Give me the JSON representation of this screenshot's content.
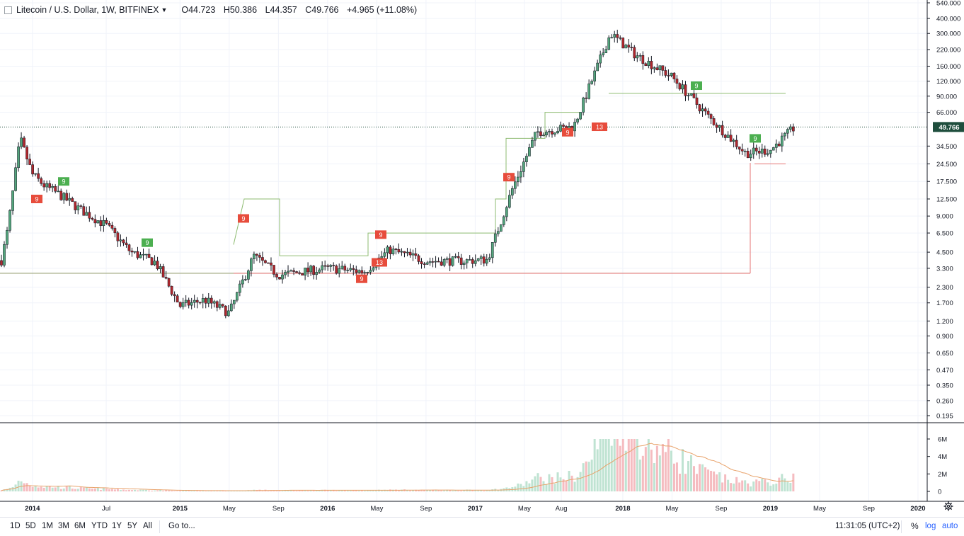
{
  "legend": {
    "symbol": "Litecoin / U.S. Dollar, 1W, BITFINEX",
    "open": "O44.723",
    "high": "H50.386",
    "low": "L44.357",
    "close": "C49.766",
    "change": "+4.965 (+11.08%)"
  },
  "price_axis": {
    "scale": "log",
    "ticks": [
      "540.000",
      "400.000",
      "300.000",
      "220.000",
      "160.000",
      "120.000",
      "90.000",
      "66.000",
      "49.766",
      "34.500",
      "24.500",
      "17.500",
      "12.500",
      "9.000",
      "6.500",
      "4.500",
      "3.300",
      "2.300",
      "1.700",
      "1.200",
      "0.900",
      "0.650",
      "0.470",
      "0.350",
      "0.260",
      "0.195"
    ],
    "last_price": "49.766"
  },
  "volume_axis": {
    "ticks": [
      "6M",
      "4M",
      "2M",
      "0"
    ]
  },
  "time_axis": {
    "labels": [
      "2014",
      "Jul",
      "2015",
      "May",
      "Sep",
      "2016",
      "May",
      "Sep",
      "2017",
      "May",
      "Aug",
      "2018",
      "May",
      "Sep",
      "2019",
      "May",
      "Sep",
      "2020"
    ],
    "bold": [
      "2014",
      "2015",
      "2016",
      "2017",
      "2018",
      "2019",
      "2020"
    ]
  },
  "bottom_bar": {
    "ranges": [
      "1D",
      "5D",
      "1M",
      "3M",
      "6M",
      "YTD",
      "1Y",
      "5Y",
      "All"
    ],
    "goto": "Go to...",
    "clock": "11:31:05 (UTC+2)",
    "percent": "%",
    "log": "log",
    "auto": "auto"
  },
  "colors": {
    "up": "#53a57c",
    "down": "#b1272d",
    "wick": "#131722",
    "vol_up": "#bfe3d2",
    "vol_down": "#f5bcc0",
    "vol_ma": "#e8a26a",
    "last_price_bg": "#1f4e3d",
    "td_red": "#e74c3c",
    "td_green": "#4caf50",
    "ref_line_olive": "#9ea57a",
    "ref_line_green": "#8dbb70",
    "ref_line_red": "#e57373"
  },
  "chart_data": {
    "type": "candlestick",
    "timeframe": "1W",
    "scale": "log",
    "price_range": [
      0.195,
      540
    ],
    "approx_weekly_close": [
      {
        "date": "2013-10",
        "close": 2.2
      },
      {
        "date": "2013-11",
        "close": 7.0
      },
      {
        "date": "2013-12",
        "close": 40
      },
      {
        "date": "2014-01",
        "close": 20
      },
      {
        "date": "2014-02",
        "close": 16
      },
      {
        "date": "2014-03",
        "close": 14
      },
      {
        "date": "2014-05",
        "close": 10
      },
      {
        "date": "2014-07",
        "close": 7.5
      },
      {
        "date": "2014-09",
        "close": 4.5
      },
      {
        "date": "2014-11",
        "close": 3.7
      },
      {
        "date": "2015-01",
        "close": 1.6
      },
      {
        "date": "2015-03",
        "close": 1.8
      },
      {
        "date": "2015-05",
        "close": 1.4
      },
      {
        "date": "2015-07",
        "close": 4.2
      },
      {
        "date": "2015-09",
        "close": 2.9
      },
      {
        "date": "2016-01",
        "close": 3.3
      },
      {
        "date": "2016-04",
        "close": 3.1
      },
      {
        "date": "2016-06",
        "close": 4.7
      },
      {
        "date": "2016-09",
        "close": 3.8
      },
      {
        "date": "2016-12",
        "close": 3.8
      },
      {
        "date": "2017-02",
        "close": 3.9
      },
      {
        "date": "2017-04",
        "close": 15
      },
      {
        "date": "2017-06",
        "close": 45
      },
      {
        "date": "2017-09",
        "close": 50
      },
      {
        "date": "2017-12",
        "close": 300
      },
      {
        "date": "2018-02",
        "close": 200
      },
      {
        "date": "2018-05",
        "close": 130
      },
      {
        "date": "2018-08",
        "close": 60
      },
      {
        "date": "2018-11",
        "close": 30
      },
      {
        "date": "2019-01",
        "close": 32
      },
      {
        "date": "2019-03",
        "close": 49.766
      }
    ],
    "current_ohlc": {
      "open": 44.723,
      "high": 50.386,
      "low": 44.357,
      "close": 49.766,
      "change": 4.965,
      "change_pct": 11.08
    },
    "volume_ticks": [
      "0",
      "2M",
      "4M",
      "6M"
    ]
  }
}
